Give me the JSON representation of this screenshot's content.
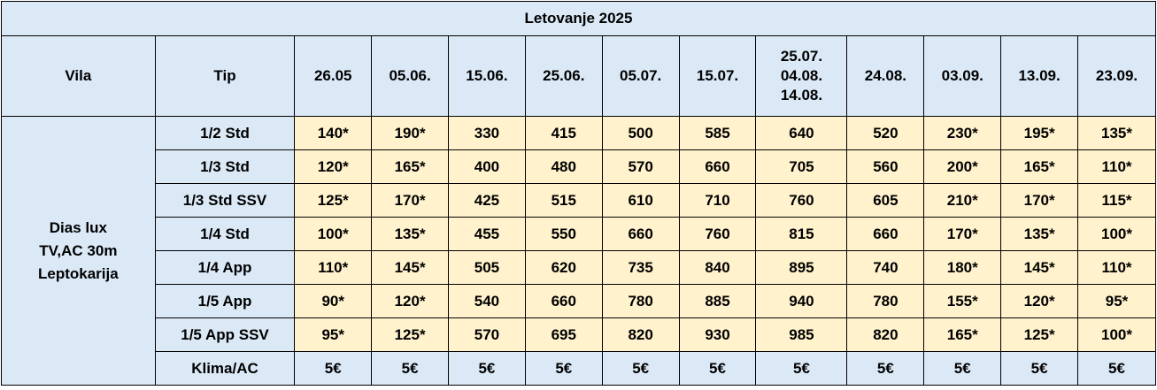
{
  "table": {
    "title": "Letovanje 2025",
    "col_villa": "Vila",
    "col_type": "Tip",
    "dates": [
      [
        "26.05"
      ],
      [
        "05.06."
      ],
      [
        "15.06."
      ],
      [
        "25.06."
      ],
      [
        "05.07."
      ],
      [
        "15.07."
      ],
      [
        "25.07.",
        "04.08.",
        "14.08."
      ],
      [
        "24.08."
      ],
      [
        "03.09."
      ],
      [
        "13.09."
      ],
      [
        "23.09."
      ]
    ],
    "villa_lines": [
      "Dias lux",
      "TV,AC 30m",
      "Leptokarija"
    ],
    "rows": [
      {
        "type": "1/2 Std",
        "prices": [
          "140*",
          "190*",
          "330",
          "415",
          "500",
          "585",
          "640",
          "520",
          "230*",
          "195*",
          "135*"
        ]
      },
      {
        "type": "1/3 Std",
        "prices": [
          "120*",
          "165*",
          "400",
          "480",
          "570",
          "660",
          "705",
          "560",
          "200*",
          "165*",
          "110*"
        ]
      },
      {
        "type": "1/3 Std SSV",
        "prices": [
          "125*",
          "170*",
          "425",
          "515",
          "610",
          "710",
          "760",
          "605",
          "210*",
          "170*",
          "115*"
        ]
      },
      {
        "type": "1/4 Std",
        "prices": [
          "100*",
          "135*",
          "455",
          "550",
          "660",
          "760",
          "815",
          "660",
          "170*",
          "135*",
          "100*"
        ]
      },
      {
        "type": "1/4 App",
        "prices": [
          "110*",
          "145*",
          "505",
          "620",
          "735",
          "840",
          "895",
          "740",
          "180*",
          "145*",
          "110*"
        ]
      },
      {
        "type": "1/5 App",
        "prices": [
          "90*",
          "120*",
          "540",
          "660",
          "780",
          "885",
          "940",
          "780",
          "155*",
          "120*",
          "95*"
        ]
      },
      {
        "type": "1/5 App SSV",
        "prices": [
          "95*",
          "125*",
          "570",
          "695",
          "820",
          "930",
          "985",
          "820",
          "165*",
          "125*",
          "100*"
        ]
      }
    ],
    "ac_row": {
      "label": "Klima/AC",
      "prices": [
        "5€",
        "5€",
        "5€",
        "5€",
        "5€",
        "5€",
        "5€",
        "5€",
        "5€",
        "5€",
        "5€"
      ]
    }
  },
  "colors": {
    "header_bg": "#dbe9f7",
    "price_bg": "#fff2cc",
    "border": "#000000"
  }
}
